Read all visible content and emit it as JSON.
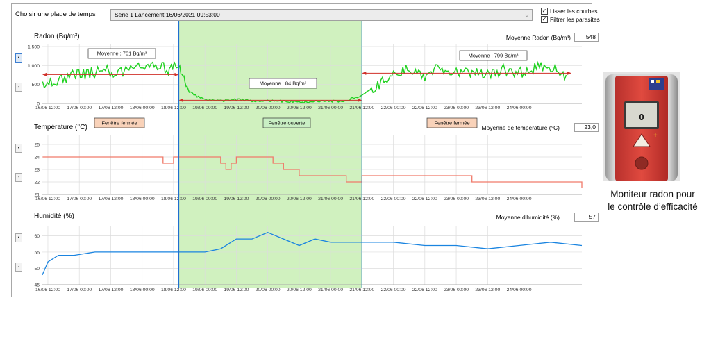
{
  "toolbar": {
    "range_label": "Choisir une plage de temps",
    "series_value": "Série 1  Lancement 16/06/2021 09:53:00",
    "smooth_label": "Lisser les courbes",
    "smooth_checked": true,
    "filter_label": "Filtrer les parasites",
    "filter_checked": true
  },
  "x_ticks": [
    "16/06 12:00",
    "17/06 00:00",
    "17/06 12:00",
    "18/06 00:00",
    "18/06 12:00",
    "19/06 00:00",
    "19/06 12:00",
    "20/06 00:00",
    "20/06 12:00",
    "21/06 00:00",
    "21/06 12:00",
    "22/06 00:00",
    "22/06 12:00",
    "23/06 00:00",
    "23/06 12:00",
    "24/06 00:00"
  ],
  "panels": {
    "radon": {
      "title": "Radon (Bq/m³)",
      "avg_label": "Moyenne Radon (Bq/m³)",
      "avg_value": "548"
    },
    "temperature": {
      "title": "Température (°C)",
      "avg_label": "Moyenne de température (°C)",
      "avg_value": "23,0"
    },
    "humidity": {
      "title": "Humidité (%)",
      "avg_label": "Moyenne d'humidité (%)",
      "avg_value": "57"
    }
  },
  "annotations": {
    "avg_left": "Moyenne : 761 Bq/m³",
    "avg_mid": "Moyenne : 84 Bq/m³",
    "avg_right": "Moyenne : 799 Bq/m³",
    "window_closed_left": "Fenêtre fermée",
    "window_open": "Fenêtre ouverte",
    "window_closed_right": "Fenêtre fermée"
  },
  "device": {
    "screen_value": "0",
    "caption_line1": "Moniteur radon pour",
    "caption_line2": "le contrôle d’efficacité"
  },
  "colors": {
    "radon": "#1fd11f",
    "temperature": "#f07a6a",
    "humidity": "#1a84e0",
    "open_window_shade": "#c8efb4",
    "mean_arrow": "#d0302a",
    "marker": "#1f6fd1",
    "closed_box": "#f9d2b9",
    "open_box": "#c9efc4"
  },
  "chart_data": [
    {
      "type": "line",
      "title": "Radon (Bq/m³)",
      "x_range": [
        "16/06 09:53",
        "25/06 00:00"
      ],
      "ylim": [
        0,
        1500
      ],
      "y_ticks": [
        0,
        500,
        1000,
        1500
      ],
      "y_tick_labels": [
        "0",
        "500",
        "1 000",
        "1 500"
      ],
      "grid": true,
      "series": [
        {
          "x": [
            "16/06 10:00",
            "16/06 16:00",
            "16/06 22:00",
            "17/06 04:00",
            "17/06 10:00",
            "17/06 16:00",
            "17/06 22:00",
            "18/06 04:00",
            "18/06 10:00",
            "18/06 14:00",
            "18/06 18:00",
            "19/06 00:00",
            "19/06 06:00",
            "19/06 12:00",
            "19/06 18:00",
            "20/06 00:00",
            "20/06 06:00",
            "20/06 12:00",
            "20/06 18:00",
            "21/06 00:00",
            "21/06 06:00",
            "21/06 12:00",
            "21/06 18:00",
            "22/06 00:00",
            "22/06 06:00",
            "22/06 12:00",
            "22/06 18:00",
            "23/06 00:00",
            "23/06 06:00",
            "23/06 12:00",
            "23/06 18:00",
            "24/06 00:00",
            "24/06 06:00",
            "24/06 12:00",
            "24/06 18:00"
          ],
          "y": [
            450,
            620,
            760,
            800,
            870,
            820,
            950,
            1050,
            900,
            1000,
            300,
            90,
            60,
            100,
            70,
            80,
            60,
            40,
            50,
            60,
            70,
            220,
            500,
            760,
            900,
            700,
            950,
            800,
            850,
            760,
            900,
            800,
            950,
            1000,
            750
          ]
        }
      ],
      "mean_segments": [
        {
          "from": "16/06 09:53",
          "to": "18/06 14:00",
          "value": 761
        },
        {
          "from": "18/06 14:00",
          "to": "21/06 12:00",
          "value": 84
        },
        {
          "from": "21/06 12:00",
          "to": "24/06 20:00",
          "value": 799
        }
      ]
    },
    {
      "type": "line",
      "title": "Température (°C)",
      "x_range": [
        "16/06 09:53",
        "25/06 00:00"
      ],
      "ylim": [
        21,
        25.5
      ],
      "y_ticks": [
        21,
        22,
        23,
        24,
        25
      ],
      "grid": true,
      "series": [
        {
          "x": [
            "16/06 10:00",
            "18/06 06:00",
            "18/06 08:00",
            "18/06 12:00",
            "18/06 14:00",
            "19/06 02:00",
            "19/06 06:00",
            "19/06 08:00",
            "19/06 10:00",
            "19/06 12:00",
            "19/06 18:00",
            "20/06 02:00",
            "20/06 06:00",
            "20/06 12:00",
            "20/06 14:00",
            "21/06 00:00",
            "21/06 06:00",
            "21/06 12:00",
            "22/06 12:00",
            "22/06 14:00",
            "23/06 06:00",
            "24/06 18:00",
            "25/06 00:00"
          ],
          "y": [
            24.0,
            24.0,
            23.5,
            24.0,
            24.0,
            24.0,
            23.5,
            23.0,
            23.5,
            24.0,
            24.0,
            23.5,
            23.0,
            22.5,
            22.5,
            22.5,
            22.0,
            22.5,
            22.5,
            22.5,
            22.0,
            22.0,
            21.5
          ]
        }
      ]
    },
    {
      "type": "line",
      "title": "Humidité (%)",
      "x_range": [
        "16/06 09:53",
        "25/06 00:00"
      ],
      "ylim": [
        45,
        62
      ],
      "y_ticks": [
        45,
        50,
        55,
        60
      ],
      "grid": true,
      "series": [
        {
          "x": [
            "16/06 09:53",
            "16/06 12:00",
            "16/06 16:00",
            "16/06 22:00",
            "17/06 06:00",
            "18/06 00:00",
            "18/06 06:00",
            "19/06 00:00",
            "19/06 06:00",
            "19/06 12:00",
            "19/06 18:00",
            "20/06 00:00",
            "20/06 06:00",
            "20/06 12:00",
            "20/06 18:00",
            "21/06 00:00",
            "21/06 12:00",
            "22/06 00:00",
            "22/06 12:00",
            "23/06 00:00",
            "23/06 12:00",
            "24/06 00:00",
            "24/06 12:00",
            "25/06 00:00"
          ],
          "y": [
            48,
            52,
            54,
            54,
            55,
            55,
            55,
            55,
            56,
            59,
            59,
            61,
            59,
            57,
            59,
            58,
            58,
            58,
            57,
            57,
            56,
            57,
            58,
            57
          ]
        }
      ]
    }
  ]
}
